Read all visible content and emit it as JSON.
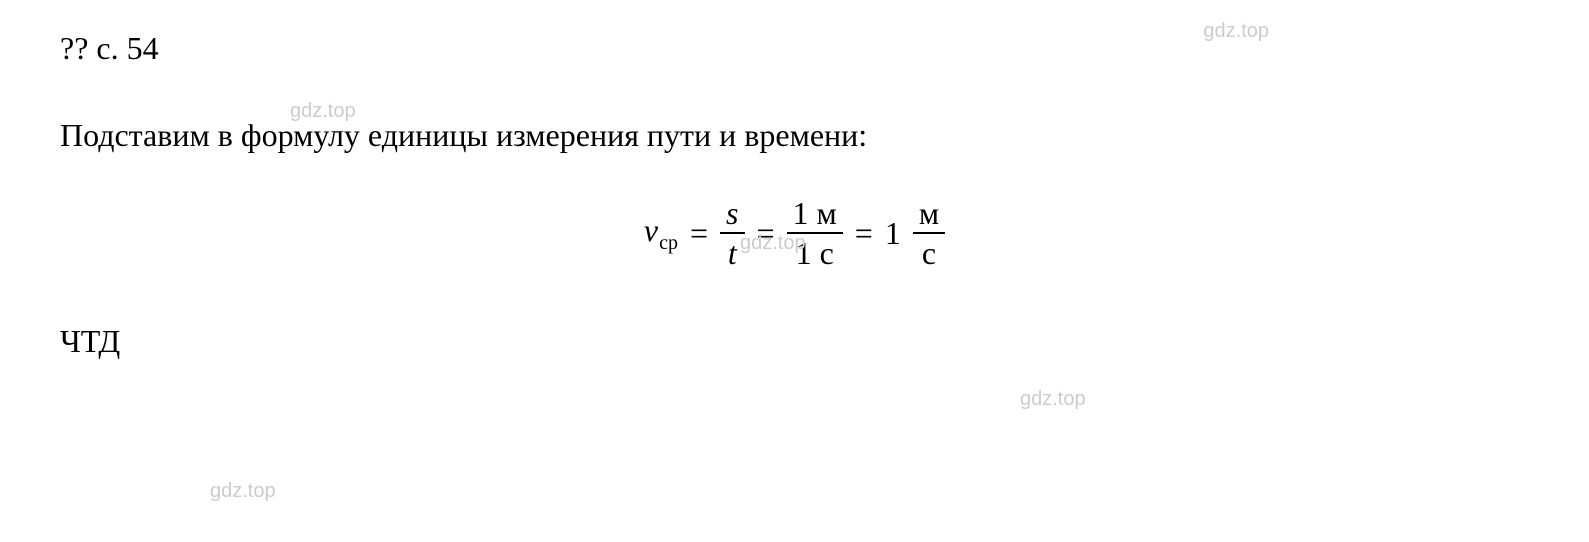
{
  "header": {
    "prefix": "?? с. 54"
  },
  "watermark": {
    "text": "gdz.top"
  },
  "body": {
    "intro": "Подставим в формулу единицы измерения пути и времени:"
  },
  "formula": {
    "lhs_var": "v",
    "lhs_sub": "ср",
    "eq": "=",
    "frac1_num": "s",
    "frac1_den": "t",
    "frac2_num_val": "1",
    "frac2_num_unit": "м",
    "frac2_den_val": "1",
    "frac2_den_unit": "с",
    "coeff": "1",
    "frac3_num": "м",
    "frac3_den": "с"
  },
  "qed": {
    "text": "ЧТД"
  },
  "style": {
    "background_color": "#ffffff",
    "text_color": "#000000",
    "watermark_color": "#cccccc",
    "body_fontsize": 32,
    "watermark_fontsize": 20,
    "subscript_fontsize": 20,
    "font_family": "Times New Roman"
  }
}
